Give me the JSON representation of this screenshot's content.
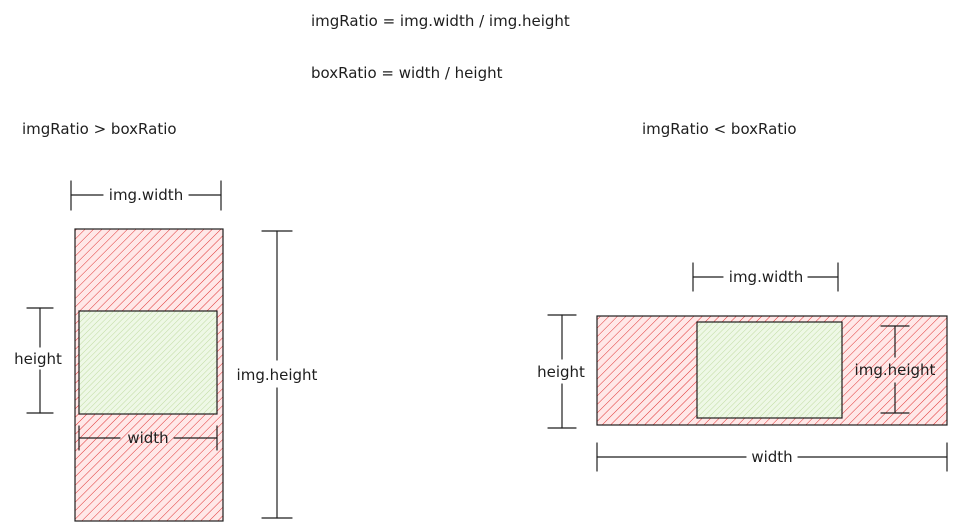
{
  "formulas": {
    "img_ratio": "imgRatio = img.width / img.height",
    "box_ratio": "boxRatio = width / height"
  },
  "left_case": {
    "title": "imgRatio > boxRatio",
    "top_dim": "img.width",
    "left_dim": "height",
    "right_dim": "img.height",
    "inner_dim": "width"
  },
  "right_case": {
    "title": "imgRatio < boxRatio",
    "top_dim": "img.width",
    "left_dim": "height",
    "inner_dim": "img.height",
    "bottom_dim": "width"
  },
  "colors": {
    "stroke": "#1e1e1e",
    "hatch_red": "#e03131",
    "red_fill": "#ffe3e3",
    "hatch_green": "#a5c97a",
    "green_fill": "#ebfbee"
  }
}
